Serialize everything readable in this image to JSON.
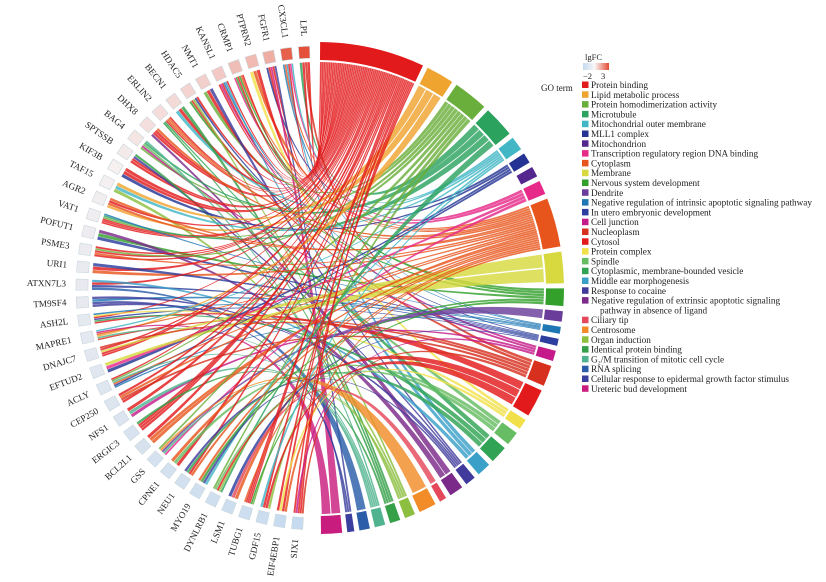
{
  "chart_data": {
    "type": "chord",
    "title": "",
    "genes": [
      "LPL",
      "CX3CL1",
      "FGFR1",
      "PTPRN2",
      "CRMP1",
      "KANSL1",
      "NMT1",
      "HDAC5",
      "BECN1",
      "ERLIN2",
      "DHX8",
      "BAG4",
      "SPTSSB",
      "KIF3B",
      "TAF15",
      "AGR2",
      "VAT1",
      "POFUT1",
      "PSME3",
      "URI1",
      "ATXN7L3",
      "TM9SF4",
      "ASH2L",
      "MAPRE1",
      "DNAJC7",
      "EFTUD2",
      "ACLY",
      "CEP250",
      "NFS1",
      "ERGIC3",
      "BCL2L1",
      "GSS",
      "CPNE1",
      "NEU1",
      "MYO19",
      "DYNLRB1",
      "LSM1",
      "TUBG1",
      "GDF15",
      "EIF4EBP1",
      "SIX1"
    ],
    "gene_lgfc": [
      2.9,
      2.6,
      1.2,
      1.0,
      0.9,
      0.7,
      0.6,
      0.5,
      0.4,
      0.35,
      0.3,
      0.2,
      0.1,
      0.0,
      -0.1,
      -0.2,
      -0.3,
      -0.35,
      -0.4,
      -0.5,
      -0.55,
      -0.6,
      -0.7,
      -0.75,
      -0.8,
      -0.9,
      -1.0,
      -1.05,
      -1.1,
      -1.2,
      -1.3,
      -1.35,
      -1.4,
      -1.5,
      -1.55,
      -1.6,
      -1.7,
      -1.75,
      -1.8,
      -1.9,
      -2.0
    ],
    "legend_title": "GO term",
    "lgfc_label": "lgFC",
    "lgfc_min": "−2",
    "lgfc_max": "3",
    "lgfc_colors": [
      "#c6dbef",
      "#f7f7f7",
      "#e34a33"
    ],
    "terms": [
      {
        "name": "Protein binding",
        "color": "#e31a1c"
      },
      {
        "name": "Lipid metabolic process",
        "color": "#f0a430"
      },
      {
        "name": "Protein homodimerization activity",
        "color": "#6aaf3c"
      },
      {
        "name": "Microtubule",
        "color": "#2ca25f"
      },
      {
        "name": "Mitochondrial outer membrane",
        "color": "#41b6c4"
      },
      {
        "name": "MLL1 complex",
        "color": "#253494"
      },
      {
        "name": "Mitochondrion",
        "color": "#54278f"
      },
      {
        "name": "Transcription regulatory region DNA binding",
        "color": "#e7298a"
      },
      {
        "name": "Cytoplasm",
        "color": "#e8551c"
      },
      {
        "name": "Membrane",
        "color": "#d7d93f"
      },
      {
        "name": "Nervous system development",
        "color": "#33a02c"
      },
      {
        "name": "Dendrite",
        "color": "#6a3d9a"
      },
      {
        "name": "Negative regulation of intrinsic apoptotic signaling pathway",
        "color": "#1f78b4"
      },
      {
        "name": "In utero embryonic development",
        "color": "#2c3e9e"
      },
      {
        "name": "Cell junction",
        "color": "#c51b8a"
      },
      {
        "name": "Nucleoplasm",
        "color": "#d7301f"
      },
      {
        "name": "Cytosol",
        "color": "#e31a1c"
      },
      {
        "name": "Protein complex",
        "color": "#f1e04a"
      },
      {
        "name": "Spindle",
        "color": "#66bd63"
      },
      {
        "name": "Cytoplasmic, membrane-bounded vesicle",
        "color": "#31a354"
      },
      {
        "name": "Middle ear morphogenesis",
        "color": "#3aa0c8"
      },
      {
        "name": "Response to cocaine",
        "color": "#3f3a9c"
      },
      {
        "name": "Negative regulation of extrinsic apoptotic signaling",
        "name2": "pathway in absence of ligand",
        "color": "#7b2a8a"
      },
      {
        "name": "Ciliary tip",
        "color": "#e4485a"
      },
      {
        "name": "Centrosome",
        "color": "#f28c28"
      },
      {
        "name": "Organ induction",
        "color": "#8cbf3f"
      },
      {
        "name": "Identical protein binding",
        "color": "#35a048"
      },
      {
        "name": "G₂/M transition of mitotic cell cycle",
        "color": "#4fb38f"
      },
      {
        "name": "RNA splicing",
        "color": "#2b5da8"
      },
      {
        "name": "Cellular response to epidermal growth factor stimulus",
        "color": "#3b3f9e"
      },
      {
        "name": "Ureteric bud development",
        "color": "#c81d7e"
      }
    ]
  }
}
